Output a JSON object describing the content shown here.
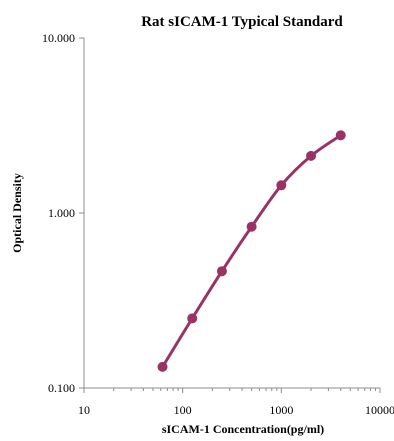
{
  "chart_data": {
    "type": "line",
    "title": "Rat  sICAM-1 Typical Standard",
    "xlabel": "sICAM-1 Concentration(pg/ml)",
    "ylabel": "Optical Density",
    "x_scale": "log",
    "y_scale": "log",
    "xlim": [
      10,
      10000
    ],
    "ylim": [
      0.1,
      10
    ],
    "x_ticks": [
      10,
      100,
      1000,
      10000
    ],
    "x_tick_labels": [
      "10",
      "100",
      "1000",
      "10000"
    ],
    "y_ticks": [
      0.1,
      1,
      10
    ],
    "y_tick_labels": [
      "0.100",
      "1.000",
      "10.000"
    ],
    "grid": false,
    "legend": "none",
    "series": [
      {
        "x": [
          62.5,
          125,
          250,
          500,
          1000,
          2000,
          4000
        ],
        "y": [
          0.132,
          0.25,
          0.465,
          0.835,
          1.44,
          2.12,
          2.78
        ],
        "color": "#993366"
      }
    ]
  }
}
